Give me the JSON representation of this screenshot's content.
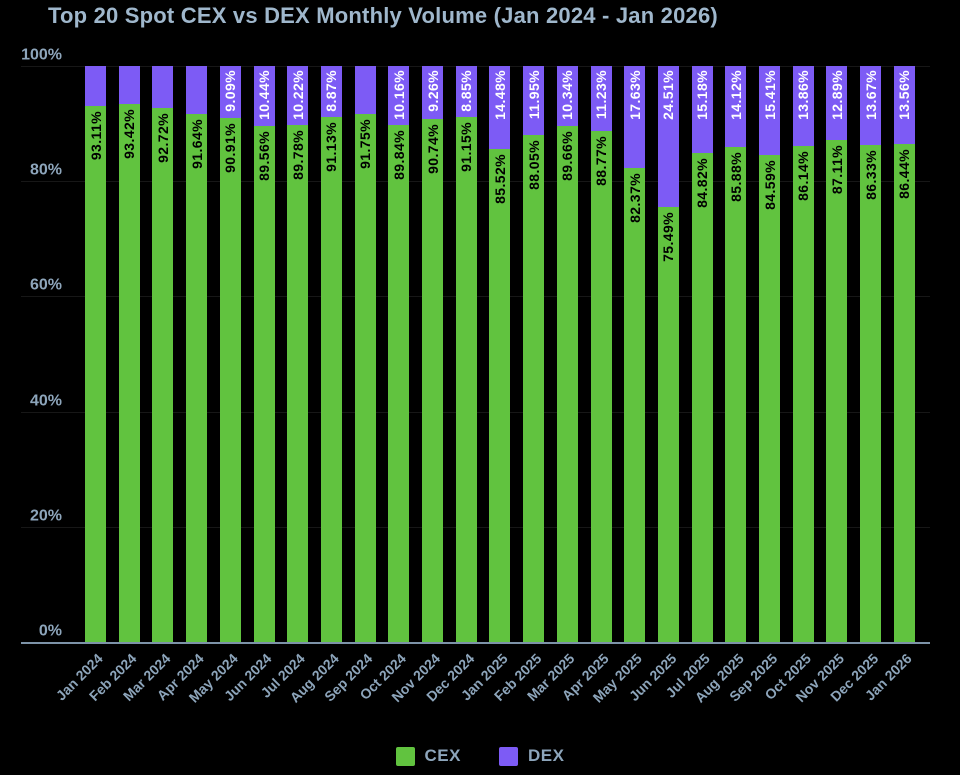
{
  "title": "Top 20 Spot CEX vs DEX Monthly Volume (Jan 2024 - Jan 2026)",
  "colors": {
    "background": "#000000",
    "cex": "#61c33f",
    "dex": "#7d5bf5",
    "title_text": "#9fb7cc",
    "axis_text": "#8da5bb",
    "axis_line": "#7d93a8",
    "cex_bar_label": "#000000",
    "dex_bar_label": "#ffffff"
  },
  "legend": {
    "position": "bottom-center",
    "items": [
      {
        "label": "CEX",
        "color": "#61c33f"
      },
      {
        "label": "DEX",
        "color": "#7d5bf5"
      }
    ]
  },
  "y_axis": {
    "tick_labels": [
      "0%",
      "20%",
      "40%",
      "60%",
      "80%",
      "100%"
    ],
    "tick_values": [
      0,
      20,
      40,
      60,
      80,
      100
    ]
  },
  "chart_data": {
    "type": "bar",
    "stacked": true,
    "normalized_percent": true,
    "title": "Top 20 Spot CEX vs DEX Monthly Volume (Jan 2024 - Jan 2026)",
    "xlabel": "",
    "ylabel": "",
    "ylim": [
      0,
      100
    ],
    "grid": "horizontal-faint",
    "legend_position": "bottom",
    "categories": [
      "Jan 2024",
      "Feb 2024",
      "Mar 2024",
      "Apr 2024",
      "May 2024",
      "Jun 2024",
      "Jul 2024",
      "Aug 2024",
      "Sep 2024",
      "Oct 2024",
      "Nov 2024",
      "Dec 2024",
      "Jan 2025",
      "Feb 2025",
      "Mar 2025",
      "Apr 2025",
      "May 2025",
      "Jun 2025",
      "Jul 2025",
      "Aug 2025",
      "Sep 2025",
      "Oct 2025",
      "Nov 2025",
      "Dec 2025",
      "Jan 2026"
    ],
    "series": [
      {
        "name": "CEX",
        "color": "#61c33f",
        "values": [
          93.11,
          93.42,
          92.72,
          91.64,
          90.91,
          89.56,
          89.78,
          91.13,
          91.75,
          89.84,
          90.74,
          91.15,
          85.52,
          88.05,
          89.66,
          88.77,
          82.37,
          75.49,
          84.82,
          85.88,
          84.59,
          86.14,
          87.11,
          86.33,
          86.44
        ]
      },
      {
        "name": "DEX",
        "color": "#7d5bf5",
        "values": [
          6.89,
          6.58,
          7.28,
          8.36,
          9.09,
          10.44,
          10.22,
          8.87,
          8.25,
          10.16,
          9.26,
          8.85,
          14.48,
          11.95,
          10.34,
          11.23,
          17.63,
          24.51,
          15.18,
          14.12,
          15.41,
          13.86,
          12.89,
          13.67,
          13.56
        ]
      }
    ],
    "bar_labels": {
      "cex": [
        "93.11%",
        "93.42%",
        "92.72%",
        "91.64%",
        "90.91%",
        "89.56%",
        "89.78%",
        "91.13%",
        "91.75%",
        "89.84%",
        "90.74%",
        "91.15%",
        "85.52%",
        "88.05%",
        "89.66%",
        "88.77%",
        "82.37%",
        "75.49%",
        "84.82%",
        "85.88%",
        "84.59%",
        "86.14%",
        "87.11%",
        "86.33%",
        "86.44%"
      ],
      "dex": [
        "",
        "",
        "",
        "",
        "9.09%",
        "10.44%",
        "10.22%",
        "8.87%",
        "",
        "10.16%",
        "9.26%",
        "8.85%",
        "14.48%",
        "11.95%",
        "10.34%",
        "11.23%",
        "17.63%",
        "24.51%",
        "15.18%",
        "14.12%",
        "15.41%",
        "13.86%",
        "12.89%",
        "13.67%",
        "13.56%"
      ]
    }
  }
}
